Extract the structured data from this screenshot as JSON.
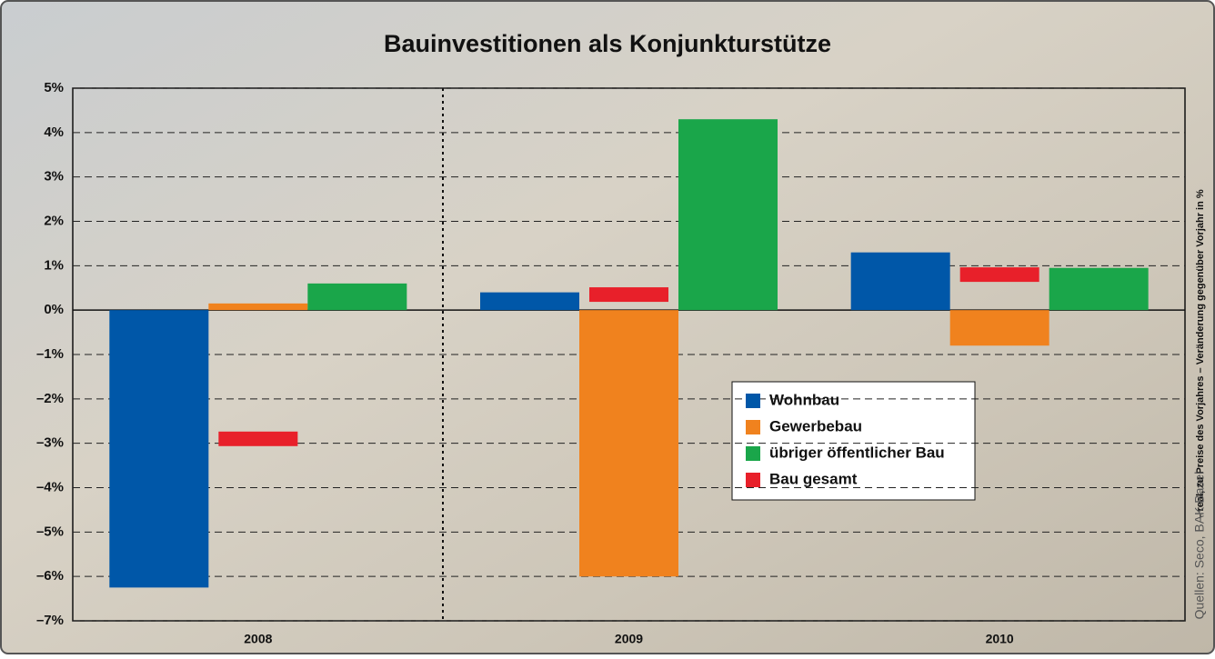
{
  "chart_data": {
    "type": "bar",
    "title": "Bauinvestitionen als Konjunkturstütze",
    "y_note": "– real, zu Preise des Vorjahres – Veränderung gegenüber Vorjahr in %",
    "source": "Quellen: Seco, BAK Basel",
    "categories": [
      "2008",
      "2009",
      "2010"
    ],
    "series": [
      {
        "name": "Wohnbau",
        "color": "#0057a8",
        "values": [
          -6.25,
          0.4,
          1.3
        ]
      },
      {
        "name": "Gewerbebau",
        "color": "#f0821e",
        "values": [
          0.15,
          -6.0,
          -0.8
        ]
      },
      {
        "name": "übriger öffentlicher Bau",
        "color": "#1aa64a",
        "values": [
          0.6,
          4.3,
          0.95
        ]
      },
      {
        "name": "Bau gesamt",
        "color": "#e8202a",
        "values": [
          -2.9,
          0.35,
          0.8
        ]
      }
    ],
    "ylim": [
      -7,
      5
    ],
    "yticks": [
      {
        "value": -7,
        "label": "–7%"
      },
      {
        "value": -6,
        "label": "–6%"
      },
      {
        "value": -5,
        "label": "–5%"
      },
      {
        "value": -4,
        "label": "–4%"
      },
      {
        "value": -3,
        "label": "–3%"
      },
      {
        "value": -2,
        "label": "–2%"
      },
      {
        "value": -1,
        "label": "–1%"
      },
      {
        "value": 0,
        "label": "0%"
      },
      {
        "value": 1,
        "label": "1%"
      },
      {
        "value": 2,
        "label": "2%"
      },
      {
        "value": 3,
        "label": "3%"
      },
      {
        "value": 4,
        "label": "4%"
      },
      {
        "value": 5,
        "label": "5%"
      }
    ],
    "grid": true,
    "legend": "center-right"
  }
}
